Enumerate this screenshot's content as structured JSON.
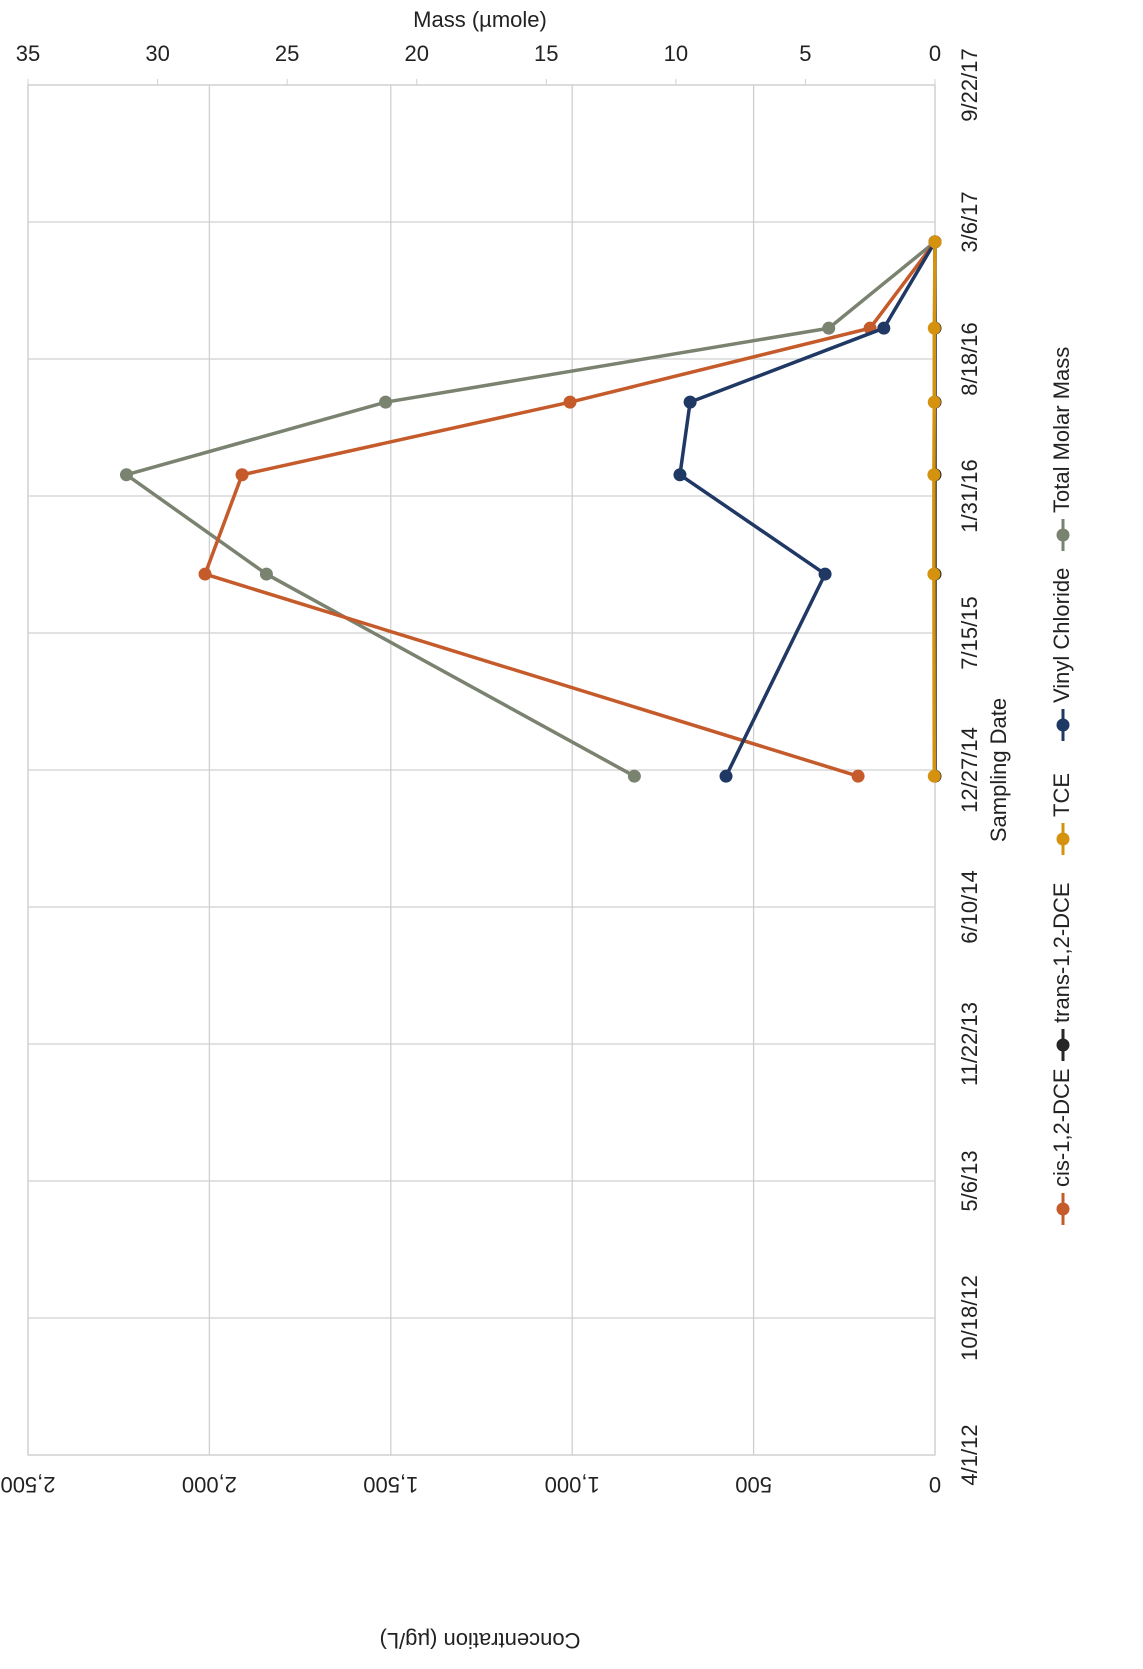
{
  "chart_data": {
    "type": "line",
    "x_label": "Sampling Date",
    "y_label": "Concentration (µg/L)",
    "y2_label": "Mass (µmole)",
    "x": [
      "12/18/14",
      "10/9/15",
      "3/2/16",
      "6/16/16",
      "10/2/16",
      "2/5/17"
    ],
    "xlim": [
      "4/1/12",
      "9/22/17"
    ],
    "xticks": [
      "4/1/12",
      "10/18/12",
      "5/6/13",
      "11/22/13",
      "6/10/14",
      "12/27/14",
      "7/15/15",
      "1/31/16",
      "8/18/16",
      "3/6/17",
      "9/22/17"
    ],
    "ylim": [
      0,
      2500
    ],
    "yticks": [
      0,
      500,
      {
        "value": 1000,
        "label": "1,000"
      },
      {
        "value": 1500,
        "label": "1,500"
      },
      {
        "value": 2000,
        "label": "2,000"
      },
      {
        "value": 2500,
        "label": "2,500"
      }
    ],
    "y2lim": [
      0,
      35
    ],
    "y2ticks": [
      0,
      5,
      10,
      15,
      20,
      25,
      30,
      35
    ],
    "grid": true,
    "legend": "bottom",
    "series": [
      {
        "name": "cis-1,2-DCE",
        "color": "#c55a2a",
        "values": [
          212,
          2012,
          1910,
          1006,
          179,
          0
        ]
      },
      {
        "name": "trans-1,2-DCE",
        "color": "#262626",
        "values": [
          0,
          0,
          0,
          0,
          0,
          0
        ]
      },
      {
        "name": "TCE",
        "color": "#d4920f",
        "values": [
          2,
          3,
          3,
          2,
          2,
          0
        ]
      },
      {
        "name": "Vinyl Chloride",
        "color": "#1f3864",
        "values": [
          576,
          303,
          703,
          675,
          141,
          0
        ]
      },
      {
        "name": "Total Molar Mass",
        "color": "#7a8270",
        "axis": "y2",
        "values": [
          11.6,
          25.8,
          31.2,
          21.2,
          4.1,
          0
        ]
      }
    ]
  }
}
